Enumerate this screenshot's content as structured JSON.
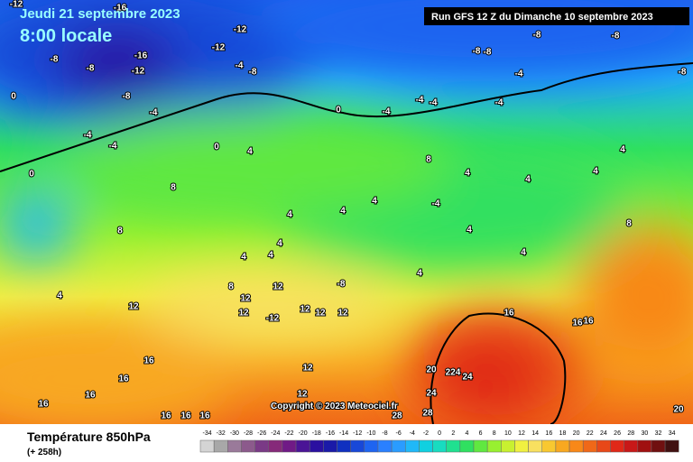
{
  "header": {
    "date": "Jeudi 21 septembre 2023",
    "time": "8:00 locale",
    "run": "Run GFS 12 Z du Dimanche 10 septembre 2023"
  },
  "copyright": "Copyright © 2023 Meteociel.fr",
  "footer": {
    "title": "Température 850hPa",
    "lead": "(+ 258h)"
  },
  "legend": {
    "values": [
      -34,
      -32,
      -30,
      -28,
      -26,
      -24,
      -22,
      -20,
      -18,
      -16,
      -14,
      -12,
      -10,
      -8,
      -6,
      -4,
      -2,
      0,
      2,
      4,
      6,
      8,
      10,
      12,
      14,
      16,
      18,
      20,
      22,
      24,
      26,
      28,
      30,
      32,
      34
    ],
    "colors": [
      "#d4d4d4",
      "#a8a8a8",
      "#9a7a9a",
      "#8c5a8c",
      "#7a3a86",
      "#862a7a",
      "#701a86",
      "#4a1496",
      "#2a10a0",
      "#1a1aa8",
      "#1030c0",
      "#1848d8",
      "#1e64f0",
      "#2a80ff",
      "#2a9cff",
      "#20b8f8",
      "#10d0e0",
      "#18dcc0",
      "#20e090",
      "#30e060",
      "#60e840",
      "#98f030",
      "#c8f030",
      "#f0f040",
      "#f8e060",
      "#f8c830",
      "#f8a820",
      "#f88818",
      "#f06818",
      "#e84818",
      "#e02818",
      "#c81818",
      "#a01010",
      "#701010",
      "#401010"
    ]
  },
  "map_labels": [
    -12,
    -16,
    -12,
    -8,
    -8,
    -12,
    -16,
    -12,
    -4,
    -8,
    -8,
    -4,
    0,
    0,
    -4,
    -4,
    -4,
    -4,
    -4,
    -8,
    -8,
    -8,
    -8,
    -8,
    -4,
    -4,
    0,
    4,
    0,
    8,
    8,
    4,
    4,
    4,
    4,
    4,
    4,
    4,
    8,
    4,
    4,
    4,
    -4,
    4,
    8,
    4,
    4,
    -8,
    12,
    8,
    12,
    12,
    -12,
    12,
    12,
    12,
    12,
    4,
    16,
    16,
    16,
    16,
    16,
    12,
    20,
    224,
    24,
    24,
    12,
    16,
    16,
    28,
    28,
    16,
    16,
    16,
    20
  ]
}
